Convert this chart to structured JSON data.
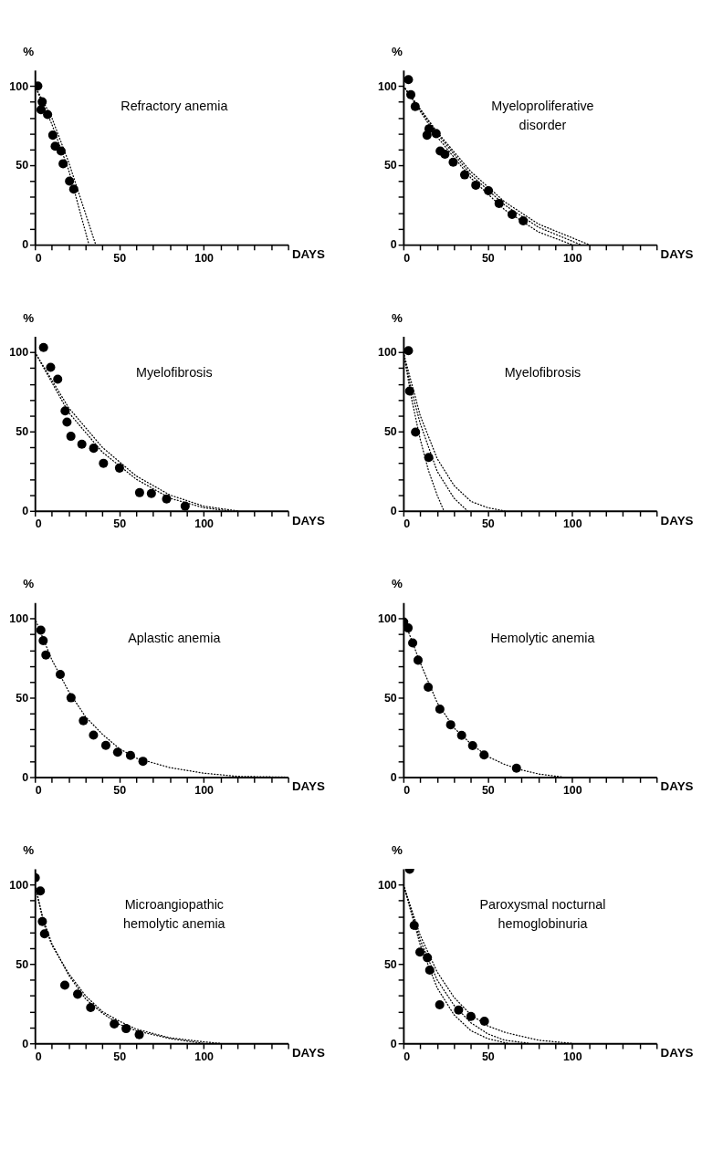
{
  "chart_data": [
    {
      "type": "scatter",
      "title": "Refractory anemia",
      "xlabel": "DAYS",
      "ylabel": "%",
      "xlim": [
        0,
        150
      ],
      "ylim": [
        0,
        110
      ],
      "grid": false,
      "xticks": [
        0,
        {
          "value": 10,
          "label": null
        },
        {
          "value": 20,
          "label": null
        },
        {
          "value": 30,
          "label": null
        },
        {
          "value": 40,
          "label": null
        },
        50,
        {
          "value": 60,
          "label": null
        },
        {
          "value": 70,
          "label": null
        },
        {
          "value": 80,
          "label": null
        },
        {
          "value": 90,
          "label": null
        },
        100,
        {
          "value": 110,
          "label": null
        },
        {
          "value": 120,
          "label": null
        },
        {
          "value": 130,
          "label": null
        },
        {
          "value": 140,
          "label": null
        },
        {
          "value": 150,
          "label": null
        }
      ],
      "yticks": [
        0,
        {
          "value": 10,
          "label": null
        },
        {
          "value": 20,
          "label": null
        },
        {
          "value": 30,
          "label": null
        },
        {
          "value": 40,
          "label": null
        },
        50,
        {
          "value": 60,
          "label": null
        },
        {
          "value": 70,
          "label": null
        },
        {
          "value": 80,
          "label": null
        },
        {
          "value": 90,
          "label": null
        },
        100
      ],
      "series": [
        {
          "type": "line",
          "line_style": "dotted",
          "color": "#000000",
          "x": [
            0,
            10,
            20,
            32
          ],
          "values": [
            100,
            76,
            47,
            0
          ]
        },
        {
          "type": "line",
          "line_style": "dotted",
          "color": "#000000",
          "x": [
            0,
            10,
            20,
            36
          ],
          "values": [
            100,
            80,
            52,
            0
          ]
        },
        {
          "type": "scatter",
          "marker": "circle",
          "color": "#000000",
          "x": [
            1.7,
            4.3,
            3.6,
            7.5,
            10.6,
            12,
            15.5,
            16.7,
            20.5,
            23
          ],
          "values": [
            100,
            90,
            85,
            82,
            69,
            62,
            59,
            51,
            40,
            35
          ]
        }
      ]
    },
    {
      "type": "scatter",
      "title": "Myeloproliferative\ndisorder",
      "xlabel": "DAYS",
      "ylabel": "%",
      "xlim": [
        0,
        150
      ],
      "ylim": [
        0,
        110
      ],
      "grid": false,
      "xticks": [
        0,
        {
          "value": 10,
          "label": null
        },
        {
          "value": 20,
          "label": null
        },
        {
          "value": 30,
          "label": null
        },
        {
          "value": 40,
          "label": null
        },
        50,
        {
          "value": 60,
          "label": null
        },
        {
          "value": 70,
          "label": null
        },
        {
          "value": 80,
          "label": null
        },
        {
          "value": 90,
          "label": null
        },
        100,
        {
          "value": 110,
          "label": null
        },
        {
          "value": 120,
          "label": null
        },
        {
          "value": 130,
          "label": null
        },
        {
          "value": 140,
          "label": null
        },
        {
          "value": 150,
          "label": null
        }
      ],
      "yticks": [
        0,
        {
          "value": 10,
          "label": null
        },
        {
          "value": 20,
          "label": null
        },
        {
          "value": 30,
          "label": null
        },
        {
          "value": 40,
          "label": null
        },
        50,
        {
          "value": 60,
          "label": null
        },
        {
          "value": 70,
          "label": null
        },
        {
          "value": 80,
          "label": null
        },
        {
          "value": 90,
          "label": null
        },
        100
      ],
      "series": [
        {
          "type": "line",
          "line_style": "dotted",
          "color": "#000000",
          "x": [
            0,
            20,
            40,
            60,
            80,
            100
          ],
          "values": [
            100,
            68,
            42,
            22,
            8,
            0
          ]
        },
        {
          "type": "line",
          "line_style": "dotted",
          "color": "#000000",
          "x": [
            0,
            20,
            40,
            60,
            80,
            105
          ],
          "values": [
            100,
            70,
            44,
            25,
            11,
            0
          ]
        },
        {
          "type": "line",
          "line_style": "dotted",
          "color": "#000000",
          "x": [
            0,
            20,
            40,
            60,
            80,
            110
          ],
          "values": [
            100,
            71,
            46,
            27,
            13,
            0
          ]
        },
        {
          "type": "scatter",
          "marker": "circle",
          "color": "#000000",
          "x": [
            3,
            4.4,
            7,
            14,
            15.2,
            19.4,
            21.8,
            24.6,
            29.5,
            36.3,
            42.9,
            50.4,
            56.7,
            64.4,
            71
          ],
          "values": [
            104,
            94.5,
            87,
            69,
            73,
            70,
            59,
            57,
            52,
            44,
            37.5,
            34,
            26,
            19,
            15
          ]
        }
      ]
    },
    {
      "type": "scatter",
      "title": "Myelofibrosis",
      "xlabel": "DAYS",
      "ylabel": "%",
      "xlim": [
        0,
        150
      ],
      "ylim": [
        0,
        110
      ],
      "grid": false,
      "xticks": [
        0,
        {
          "value": 10,
          "label": null
        },
        {
          "value": 20,
          "label": null
        },
        {
          "value": 30,
          "label": null
        },
        {
          "value": 40,
          "label": null
        },
        50,
        {
          "value": 60,
          "label": null
        },
        {
          "value": 70,
          "label": null
        },
        {
          "value": 80,
          "label": null
        },
        {
          "value": 90,
          "label": null
        },
        100,
        {
          "value": 110,
          "label": null
        },
        {
          "value": 120,
          "label": null
        },
        {
          "value": 130,
          "label": null
        },
        {
          "value": 140,
          "label": null
        },
        {
          "value": 150,
          "label": null
        }
      ],
      "yticks": [
        0,
        {
          "value": 10,
          "label": null
        },
        {
          "value": 20,
          "label": null
        },
        {
          "value": 30,
          "label": null
        },
        {
          "value": 40,
          "label": null
        },
        50,
        {
          "value": 60,
          "label": null
        },
        {
          "value": 70,
          "label": null
        },
        {
          "value": 80,
          "label": null
        },
        {
          "value": 90,
          "label": null
        },
        100
      ],
      "series": [
        {
          "type": "line",
          "line_style": "dotted",
          "color": "#000000",
          "x": [
            0,
            20,
            40,
            60,
            80,
            100,
            115
          ],
          "values": [
            100,
            62,
            37,
            20,
            8,
            2,
            0
          ]
        },
        {
          "type": "line",
          "line_style": "dotted",
          "color": "#000000",
          "x": [
            0,
            20,
            40,
            60,
            80,
            100,
            120
          ],
          "values": [
            100,
            65,
            40,
            22,
            10,
            3,
            0
          ]
        },
        {
          "type": "scatter",
          "marker": "circle",
          "color": "#000000",
          "x": [
            5.1,
            9.3,
            13.5,
            17.9,
            19,
            21.3,
            27.8,
            34.8,
            40.6,
            50.1,
            62,
            69,
            78,
            89
          ],
          "values": [
            103,
            90.5,
            83,
            63,
            56,
            47,
            42,
            39.5,
            30,
            27,
            11.5,
            11,
            7.5,
            3
          ]
        }
      ]
    },
    {
      "type": "scatter",
      "title": "Myelofibrosis",
      "xlabel": "DAYS",
      "ylabel": "%",
      "xlim": [
        0,
        150
      ],
      "ylim": [
        0,
        110
      ],
      "grid": false,
      "xticks": [
        0,
        {
          "value": 10,
          "label": null
        },
        {
          "value": 20,
          "label": null
        },
        {
          "value": 30,
          "label": null
        },
        {
          "value": 40,
          "label": null
        },
        50,
        {
          "value": 60,
          "label": null
        },
        {
          "value": 70,
          "label": null
        },
        {
          "value": 80,
          "label": null
        },
        {
          "value": 90,
          "label": null
        },
        100,
        {
          "value": 110,
          "label": null
        },
        {
          "value": 120,
          "label": null
        },
        {
          "value": 130,
          "label": null
        },
        {
          "value": 140,
          "label": null
        },
        {
          "value": 150,
          "label": null
        }
      ],
      "yticks": [
        0,
        {
          "value": 10,
          "label": null
        },
        {
          "value": 20,
          "label": null
        },
        {
          "value": 30,
          "label": null
        },
        {
          "value": 40,
          "label": null
        },
        50,
        {
          "value": 60,
          "label": null
        },
        {
          "value": 70,
          "label": null
        },
        {
          "value": 80,
          "label": null
        },
        {
          "value": 90,
          "label": null
        },
        100
      ],
      "series": [
        {
          "type": "line",
          "line_style": "dotted",
          "color": "#000000",
          "x": [
            0,
            5,
            10,
            15,
            20,
            24
          ],
          "values": [
            100,
            70,
            45,
            25,
            10,
            0
          ]
        },
        {
          "type": "line",
          "line_style": "dotted",
          "color": "#000000",
          "x": [
            0,
            5,
            10,
            20,
            30,
            38
          ],
          "values": [
            100,
            75,
            55,
            25,
            8,
            0
          ]
        },
        {
          "type": "line",
          "line_style": "dotted",
          "color": "#000000",
          "x": [
            0,
            10,
            20,
            30,
            40,
            50,
            60
          ],
          "values": [
            100,
            60,
            33,
            16,
            6,
            2,
            0
          ]
        },
        {
          "type": "scatter",
          "marker": "circle",
          "color": "#000000",
          "x": [
            3,
            3.7,
            7.2,
            15
          ],
          "values": [
            101,
            75.5,
            49.6,
            33.7
          ]
        }
      ]
    },
    {
      "type": "scatter",
      "title": "Aplastic anemia",
      "xlabel": "DAYS",
      "ylabel": "%",
      "xlim": [
        0,
        150
      ],
      "ylim": [
        0,
        110
      ],
      "grid": false,
      "xticks": [
        0,
        {
          "value": 10,
          "label": null
        },
        {
          "value": 20,
          "label": null
        },
        {
          "value": 30,
          "label": null
        },
        {
          "value": 40,
          "label": null
        },
        50,
        {
          "value": 60,
          "label": null
        },
        {
          "value": 70,
          "label": null
        },
        {
          "value": 80,
          "label": null
        },
        {
          "value": 90,
          "label": null
        },
        100,
        {
          "value": 110,
          "label": null
        },
        {
          "value": 120,
          "label": null
        },
        {
          "value": 130,
          "label": null
        },
        {
          "value": 140,
          "label": null
        },
        {
          "value": 150,
          "label": null
        }
      ],
      "yticks": [
        0,
        {
          "value": 10,
          "label": null
        },
        {
          "value": 20,
          "label": null
        },
        {
          "value": 30,
          "label": null
        },
        {
          "value": 40,
          "label": null
        },
        50,
        {
          "value": 60,
          "label": null
        },
        {
          "value": 70,
          "label": null
        },
        {
          "value": 80,
          "label": null
        },
        {
          "value": 90,
          "label": null
        },
        100
      ],
      "series": [
        {
          "type": "line",
          "line_style": "dotted",
          "color": "#000000",
          "x": [
            0,
            10,
            20,
            30,
            40,
            50,
            60,
            80,
            100,
            120,
            150
          ],
          "values": [
            100,
            74,
            54,
            38,
            27,
            18,
            12,
            6,
            2.5,
            0.5,
            0
          ]
        },
        {
          "type": "scatter",
          "marker": "circle",
          "color": "#000000",
          "x": [
            3.5,
            4.9,
            6.5,
            15,
            21.4,
            28.7,
            34.7,
            42,
            49,
            56.6,
            64
          ],
          "values": [
            92.6,
            86,
            77,
            64.7,
            50,
            35.5,
            26.5,
            20,
            15.7,
            13.7,
            10
          ]
        }
      ]
    },
    {
      "type": "scatter",
      "title": "Hemolytic anemia",
      "xlabel": "DAYS",
      "ylabel": "%",
      "xlim": [
        0,
        150
      ],
      "ylim": [
        0,
        110
      ],
      "grid": false,
      "xticks": [
        0,
        {
          "value": 10,
          "label": null
        },
        {
          "value": 20,
          "label": null
        },
        {
          "value": 30,
          "label": null
        },
        {
          "value": 40,
          "label": null
        },
        50,
        {
          "value": 60,
          "label": null
        },
        {
          "value": 70,
          "label": null
        },
        {
          "value": 80,
          "label": null
        },
        {
          "value": 90,
          "label": null
        },
        100,
        {
          "value": 110,
          "label": null
        },
        {
          "value": 120,
          "label": null
        },
        {
          "value": 130,
          "label": null
        },
        {
          "value": 140,
          "label": null
        },
        {
          "value": 150,
          "label": null
        }
      ],
      "yticks": [
        0,
        {
          "value": 10,
          "label": null
        },
        {
          "value": 20,
          "label": null
        },
        {
          "value": 30,
          "label": null
        },
        {
          "value": 40,
          "label": null
        },
        50,
        {
          "value": 60,
          "label": null
        },
        {
          "value": 70,
          "label": null
        },
        {
          "value": 80,
          "label": null
        },
        {
          "value": 90,
          "label": null
        },
        100
      ],
      "series": [
        {
          "type": "line",
          "line_style": "dotted",
          "color": "#000000",
          "x": [
            0,
            10,
            20,
            30,
            40,
            50,
            60,
            70,
            80,
            95
          ],
          "values": [
            100,
            72,
            47,
            31,
            21,
            13,
            8,
            4.5,
            2,
            0
          ]
        },
        {
          "type": "scatter",
          "marker": "circle",
          "color": "#000000",
          "x": [
            0.2,
            2.8,
            5.5,
            8.7,
            14.7,
            21.6,
            28,
            34.5,
            41,
            47.8,
            67
          ],
          "values": [
            97.8,
            94,
            84.6,
            73.7,
            56.7,
            42.9,
            33,
            26.3,
            19.9,
            14,
            5.6
          ]
        }
      ]
    },
    {
      "type": "scatter",
      "title": "Microangiopathic\nhemolytic anemia",
      "xlabel": "DAYS",
      "ylabel": "%",
      "xlim": [
        0,
        150
      ],
      "ylim": [
        0,
        110
      ],
      "grid": false,
      "xticks": [
        0,
        {
          "value": 10,
          "label": null
        },
        {
          "value": 20,
          "label": null
        },
        {
          "value": 30,
          "label": null
        },
        {
          "value": 40,
          "label": null
        },
        50,
        {
          "value": 60,
          "label": null
        },
        {
          "value": 70,
          "label": null
        },
        {
          "value": 80,
          "label": null
        },
        {
          "value": 90,
          "label": null
        },
        100,
        {
          "value": 110,
          "label": null
        },
        {
          "value": 120,
          "label": null
        },
        {
          "value": 130,
          "label": null
        },
        {
          "value": 140,
          "label": null
        },
        {
          "value": 150,
          "label": null
        }
      ],
      "yticks": [
        0,
        {
          "value": 10,
          "label": null
        },
        {
          "value": 20,
          "label": null
        },
        {
          "value": 30,
          "label": null
        },
        {
          "value": 40,
          "label": null
        },
        50,
        {
          "value": 60,
          "label": null
        },
        {
          "value": 70,
          "label": null
        },
        {
          "value": 80,
          "label": null
        },
        {
          "value": 90,
          "label": null
        },
        100
      ],
      "series": [
        {
          "type": "line",
          "line_style": "dotted",
          "color": "#000000",
          "x": [
            0,
            5,
            10,
            20,
            30,
            40,
            50,
            60,
            80,
            100
          ],
          "values": [
            100,
            78,
            63,
            43,
            28,
            19,
            12,
            8,
            3,
            0
          ]
        },
        {
          "type": "line",
          "line_style": "dotted",
          "color": "#000000",
          "x": [
            0,
            5,
            10,
            20,
            30,
            40,
            50,
            60,
            80,
            100,
            110
          ],
          "values": [
            100,
            76,
            62,
            44,
            30,
            20,
            14,
            9,
            3.5,
            1,
            0
          ]
        },
        {
          "type": "scatter",
          "marker": "circle",
          "color": "#000000",
          "x": [
            0.2,
            3.2,
            4.4,
            5.7,
            17.7,
            25.3,
            33,
            47,
            54,
            61.8
          ],
          "values": [
            104.4,
            96,
            76.8,
            69,
            36.7,
            31,
            22.6,
            12.2,
            9.3,
            5.5
          ]
        }
      ]
    },
    {
      "type": "scatter",
      "title": "Paroxysmal nocturnal\nhemoglobinuria",
      "xlabel": "DAYS",
      "ylabel": "%",
      "xlim": [
        0,
        150
      ],
      "ylim": [
        0,
        110
      ],
      "grid": false,
      "xticks": [
        0,
        {
          "value": 10,
          "label": null
        },
        {
          "value": 20,
          "label": null
        },
        {
          "value": 30,
          "label": null
        },
        {
          "value": 40,
          "label": null
        },
        50,
        {
          "value": 60,
          "label": null
        },
        {
          "value": 70,
          "label": null
        },
        {
          "value": 80,
          "label": null
        },
        {
          "value": 90,
          "label": null
        },
        100,
        {
          "value": 110,
          "label": null
        },
        {
          "value": 120,
          "label": null
        },
        {
          "value": 130,
          "label": null
        },
        {
          "value": 140,
          "label": null
        },
        {
          "value": 150,
          "label": null
        }
      ],
      "yticks": [
        0,
        {
          "value": 10,
          "label": null
        },
        {
          "value": 20,
          "label": null
        },
        {
          "value": 30,
          "label": null
        },
        {
          "value": 40,
          "label": null
        },
        50,
        {
          "value": 60,
          "label": null
        },
        {
          "value": 70,
          "label": null
        },
        {
          "value": 80,
          "label": null
        },
        {
          "value": 90,
          "label": null
        },
        100
      ],
      "series": [
        {
          "type": "line",
          "line_style": "dotted",
          "color": "#000000",
          "x": [
            0,
            10,
            20,
            30,
            40,
            50,
            62
          ],
          "values": [
            100,
            62,
            35,
            18,
            8,
            3,
            0
          ]
        },
        {
          "type": "line",
          "line_style": "dotted",
          "color": "#000000",
          "x": [
            0,
            10,
            20,
            30,
            40,
            50,
            60,
            75
          ],
          "values": [
            100,
            65,
            40,
            24,
            13,
            6,
            2,
            0
          ]
        },
        {
          "type": "line",
          "line_style": "dotted",
          "color": "#000000",
          "x": [
            0,
            10,
            20,
            30,
            40,
            50,
            60,
            80,
            100
          ],
          "values": [
            100,
            68,
            45,
            29,
            18,
            11,
            7,
            2,
            0
          ]
        },
        {
          "type": "scatter",
          "marker": "circle",
          "color": "#000000",
          "x": [
            3.7,
            6.4,
            9.8,
            14.2,
            15.6,
            21.5,
            32.7,
            40,
            48
          ],
          "values": [
            109.7,
            74.3,
            57.5,
            54,
            46.2,
            24.3,
            21,
            17,
            14
          ]
        }
      ]
    }
  ]
}
